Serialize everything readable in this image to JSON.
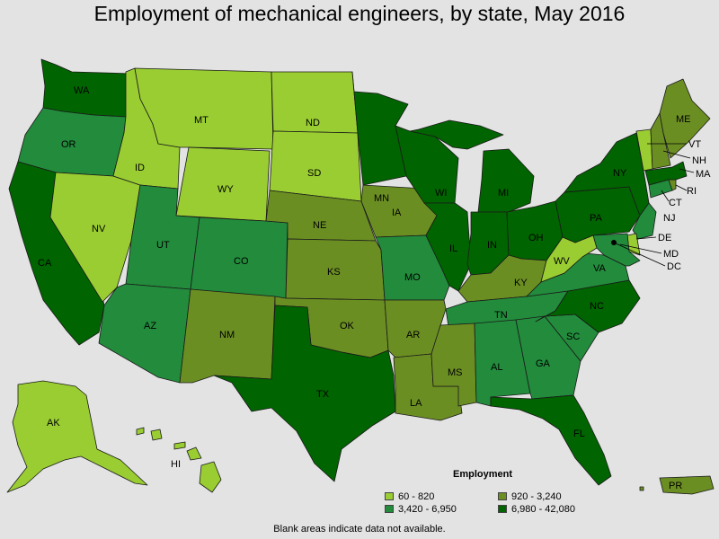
{
  "title": "Employment of mechanical engineers, by state, May 2016",
  "colors": {
    "bin1": "#9acd32",
    "bin2": "#6b8e23",
    "bin3": "#228b3c",
    "bin4": "#006400",
    "water": "#e3e3e3"
  },
  "legend": {
    "title": "Employment",
    "items": [
      {
        "label": "60 - 820",
        "bin": "bin1"
      },
      {
        "label": "920 - 3,240",
        "bin": "bin2"
      },
      {
        "label": "3,420 - 6,950",
        "bin": "bin3"
      },
      {
        "label": "6,980 - 42,080",
        "bin": "bin4"
      }
    ]
  },
  "footnote": "Blank areas indicate data not available.",
  "states": {
    "WA": "bin4",
    "OR": "bin3",
    "CA": "bin4",
    "NV": "bin1",
    "ID": "bin1",
    "MT": "bin1",
    "WY": "bin1",
    "UT": "bin3",
    "CO": "bin3",
    "AZ": "bin3",
    "NM": "bin2",
    "ND": "bin1",
    "SD": "bin1",
    "NE": "bin2",
    "KS": "bin2",
    "OK": "bin2",
    "TX": "bin4",
    "MN": "bin4",
    "IA": "bin2",
    "MO": "bin3",
    "AR": "bin2",
    "LA": "bin2",
    "WI": "bin4",
    "IL": "bin4",
    "MI": "bin4",
    "IN": "bin4",
    "OH": "bin4",
    "KY": "bin2",
    "TN": "bin3",
    "MS": "bin2",
    "AL": "bin3",
    "GA": "bin3",
    "FL": "bin4",
    "SC": "bin3",
    "NC": "bin4",
    "VA": "bin3",
    "WV": "bin1",
    "PA": "bin4",
    "NY": "bin4",
    "VT": "bin1",
    "NH": "bin2",
    "ME": "bin2",
    "MA": "bin4",
    "RI": "bin2",
    "CT": "bin3",
    "NJ": "bin3",
    "DE": "bin1",
    "MD": "bin3",
    "DC": "bin1",
    "AK": "bin1",
    "HI": "bin1",
    "PR": "bin2"
  },
  "labels": {
    "WA": "WA",
    "OR": "OR",
    "CA": "CA",
    "NV": "NV",
    "ID": "ID",
    "MT": "MT",
    "WY": "WY",
    "UT": "UT",
    "CO": "CO",
    "AZ": "AZ",
    "NM": "NM",
    "ND": "ND",
    "SD": "SD",
    "NE": "NE",
    "KS": "KS",
    "OK": "OK",
    "TX": "TX",
    "MN": "MN",
    "IA": "IA",
    "MO": "MO",
    "AR": "AR",
    "LA": "LA",
    "WI": "WI",
    "IL": "IL",
    "MI": "MI",
    "IN": "IN",
    "OH": "OH",
    "KY": "KY",
    "TN": "TN",
    "MS": "MS",
    "AL": "AL",
    "GA": "GA",
    "FL": "FL",
    "SC": "SC",
    "NC": "NC",
    "VA": "VA",
    "WV": "WV",
    "PA": "PA",
    "NY": "NY",
    "VT": "VT",
    "NH": "NH",
    "ME": "ME",
    "MA": "MA",
    "RI": "RI",
    "CT": "CT",
    "NJ": "NJ",
    "DE": "DE",
    "MD": "MD",
    "DC": "DC",
    "AK": "AK",
    "HI": "HI",
    "PR": "PR"
  }
}
